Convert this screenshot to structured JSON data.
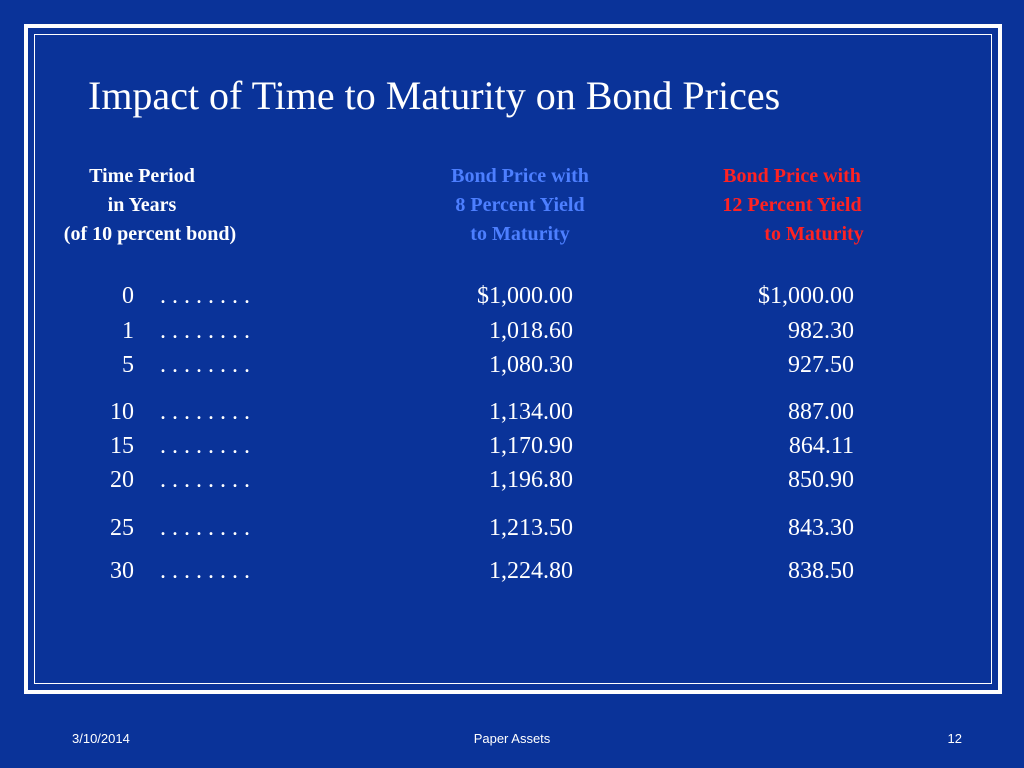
{
  "slide": {
    "title": "Impact of Time to Maturity on Bond Prices",
    "headers": {
      "time": [
        "Time Period",
        "in Years",
        "(of 10 percent bond)"
      ],
      "yield8": [
        "Bond Price with",
        "8 Percent Yield",
        "to Maturity"
      ],
      "yield12": [
        "Bond Price with",
        "12 Percent Yield",
        "to Maturity"
      ]
    },
    "leader_dots": ". . . . . . . .",
    "rows": [
      {
        "years": "0",
        "price8": "$1,000.00",
        "price12": "$1,000.00"
      },
      {
        "years": "1",
        "price8": "1,018.60",
        "price12": "982.30"
      },
      {
        "years": "5",
        "price8": "1,080.30",
        "price12": "927.50"
      },
      {
        "years": "10",
        "price8": "1,134.00",
        "price12": "887.00"
      },
      {
        "years": "15",
        "price8": "1,170.90",
        "price12": "864.11"
      },
      {
        "years": "20",
        "price8": "1,196.80",
        "price12": "850.90"
      },
      {
        "years": "25",
        "price8": "1,213.50",
        "price12": "843.30"
      },
      {
        "years": "30",
        "price8": "1,224.80",
        "price12": "838.50"
      }
    ],
    "colors": {
      "background": "#0a3399",
      "text": "#ffffff",
      "yield8_header": "#4d7fff",
      "yield12_header": "#ff2222"
    }
  },
  "footer": {
    "date": "3/10/2014",
    "center": "Paper Assets",
    "page": "12"
  }
}
